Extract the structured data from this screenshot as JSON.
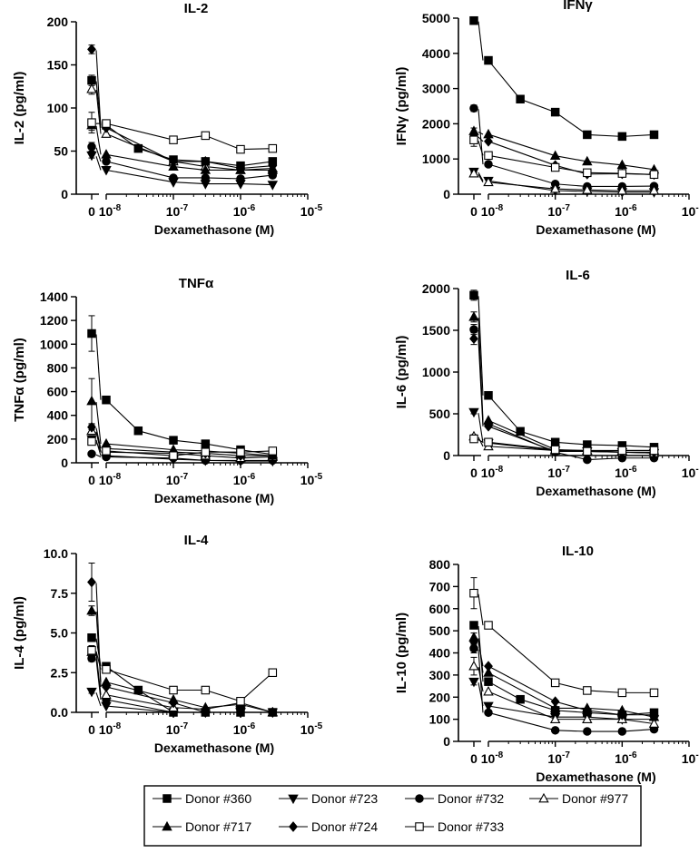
{
  "x_axis": {
    "label": "Dexamethasone (M)",
    "ticks": [
      {
        "base": "0",
        "exp": ""
      },
      {
        "base": "10",
        "exp": "-8"
      },
      {
        "base": "10",
        "exp": "-7"
      },
      {
        "base": "10",
        "exp": "-6"
      },
      {
        "base": "10",
        "exp": "-5"
      }
    ]
  },
  "legend": [
    {
      "name": "Donor #360",
      "marker": "square-filled"
    },
    {
      "name": "Donor #723",
      "marker": "triangle-down-filled"
    },
    {
      "name": "Donor #732",
      "marker": "circle-filled"
    },
    {
      "name": "Donor #977",
      "marker": "triangle-up-open"
    },
    {
      "name": "Donor #717",
      "marker": "triangle-up-filled"
    },
    {
      "name": "Donor #724",
      "marker": "diamond-filled"
    },
    {
      "name": "Donor #733",
      "marker": "square-open"
    }
  ],
  "chart_data": [
    {
      "type": "line",
      "title": "IL-2",
      "ylabel": "IL-2 (pg/ml)",
      "xlabel": "Dexamethasone (M)",
      "xscale": "log with separate zero point",
      "x_zero_label": "0",
      "x": [
        1e-08,
        3e-08,
        1e-07,
        3e-07,
        1e-06,
        3e-06
      ],
      "ylim": [
        0,
        200
      ],
      "yticks": [
        "0",
        "50",
        "100",
        "150",
        "200"
      ],
      "series": [
        {
          "name": "Donor #360",
          "zero": 132,
          "zero_err": 6,
          "values": [
            80,
            53,
            40,
            38,
            33,
            38
          ]
        },
        {
          "name": "Donor #723",
          "zero": 45,
          "zero_err": 3,
          "values": [
            28,
            null,
            14,
            12,
            12,
            11
          ]
        },
        {
          "name": "Donor #732",
          "zero": 55,
          "zero_err": 5,
          "values": [
            38,
            null,
            19,
            19,
            18,
            22
          ]
        },
        {
          "name": "Donor #977",
          "zero": 122,
          "zero_err": 6,
          "values": [
            70,
            null,
            38,
            32,
            28,
            30
          ]
        },
        {
          "name": "Donor #717",
          "zero": 80,
          "zero_err": 6,
          "values": [
            46,
            null,
            32,
            28,
            28,
            28
          ]
        },
        {
          "name": "Donor #724",
          "zero": 168,
          "zero_err": 5,
          "values": [
            77,
            null,
            38,
            38,
            30,
            33
          ]
        },
        {
          "name": "Donor #733",
          "zero": 83,
          "zero_err": 12,
          "values": [
            82,
            null,
            63,
            68,
            52,
            53
          ]
        }
      ]
    },
    {
      "type": "line",
      "title": "IFNγ",
      "ylabel": "IFNγ (pg/ml)",
      "xlabel": "Dexamethasone (M)",
      "xscale": "log with separate zero point",
      "x_zero_label": "0",
      "x": [
        1e-08,
        3e-08,
        1e-07,
        3e-07,
        1e-06,
        3e-06
      ],
      "ylim": [
        0,
        5000
      ],
      "yticks": [
        "0",
        "1000",
        "2000",
        "3000",
        "4000",
        "5000"
      ],
      "series": [
        {
          "name": "Donor #360",
          "zero": 4930,
          "zero_err": 40,
          "values": [
            3800,
            2700,
            2330,
            1690,
            1640,
            1690
          ]
        },
        {
          "name": "Donor #723",
          "zero": 640,
          "zero_err": 40,
          "values": [
            380,
            null,
            100,
            80,
            60,
            60
          ]
        },
        {
          "name": "Donor #732",
          "zero": 2440,
          "zero_err": 90,
          "values": [
            850,
            null,
            290,
            220,
            220,
            230
          ]
        },
        {
          "name": "Donor #977",
          "zero": 590,
          "zero_err": 40,
          "values": [
            340,
            null,
            150,
            120,
            100,
            100
          ]
        },
        {
          "name": "Donor #717",
          "zero": 1790,
          "zero_err": 90,
          "values": [
            1700,
            null,
            1090,
            930,
            830,
            700
          ]
        },
        {
          "name": "Donor #724",
          "zero": 1650,
          "zero_err": 90,
          "values": [
            1500,
            null,
            820,
            570,
            580,
            560
          ]
        },
        {
          "name": "Donor #733",
          "zero": 1540,
          "zero_err": 180,
          "values": [
            1100,
            null,
            760,
            610,
            590,
            560
          ]
        }
      ]
    },
    {
      "type": "line",
      "title": "TNFα",
      "ylabel": "TNFα (pg/ml)",
      "xlabel": "Dexamethasone (M)",
      "xscale": "log with separate zero point",
      "x_zero_label": "0",
      "x": [
        1e-08,
        3e-08,
        1e-07,
        3e-07,
        1e-06,
        3e-06
      ],
      "ylim": [
        0,
        1400
      ],
      "yticks": [
        "0",
        "200",
        "400",
        "600",
        "800",
        "1000",
        "1200",
        "1400"
      ],
      "series": [
        {
          "name": "Donor #360",
          "zero": 1090,
          "zero_err": 150,
          "values": [
            530,
            270,
            190,
            160,
            110,
            70
          ]
        },
        {
          "name": "Donor #723",
          "zero": 200,
          "zero_err": 15,
          "values": [
            60,
            null,
            30,
            20,
            15,
            15
          ]
        },
        {
          "name": "Donor #732",
          "zero": 75,
          "zero_err": 10,
          "values": [
            50,
            null,
            40,
            20,
            20,
            20
          ]
        },
        {
          "name": "Donor #977",
          "zero": 270,
          "zero_err": 30,
          "values": [
            90,
            null,
            80,
            60,
            40,
            50
          ]
        },
        {
          "name": "Donor #717",
          "zero": 520,
          "zero_err": 190,
          "values": [
            160,
            null,
            110,
            100,
            80,
            60
          ]
        },
        {
          "name": "Donor #724",
          "zero": 300,
          "zero_err": 20,
          "values": [
            120,
            null,
            90,
            80,
            60,
            60
          ]
        },
        {
          "name": "Donor #733",
          "zero": 180,
          "zero_err": 30,
          "values": [
            100,
            null,
            60,
            90,
            90,
            100
          ]
        }
      ]
    },
    {
      "type": "line",
      "title": "IL-6",
      "ylabel": "IL-6 (pg/ml)",
      "xlabel": "Dexamethasone (M)",
      "xscale": "log with separate zero point",
      "x_zero_label": "0",
      "x": [
        1e-08,
        3e-08,
        1e-07,
        3e-07,
        1e-06,
        3e-06
      ],
      "ylim": [
        0,
        2000
      ],
      "yticks": [
        "0",
        "500",
        "1000",
        "1500",
        "2000"
      ],
      "series": [
        {
          "name": "Donor #360",
          "zero": 1920,
          "zero_err": 60,
          "values": [
            720,
            290,
            160,
            130,
            120,
            100
          ]
        },
        {
          "name": "Donor #723",
          "zero": 520,
          "zero_err": 20,
          "values": [
            150,
            null,
            60,
            50,
            40,
            30
          ]
        },
        {
          "name": "Donor #732",
          "zero": 1510,
          "zero_err": 60,
          "values": [
            380,
            null,
            40,
            -50,
            -30,
            -30
          ]
        },
        {
          "name": "Donor #977",
          "zero": 230,
          "zero_err": 20,
          "values": [
            110,
            null,
            60,
            60,
            40,
            30
          ]
        },
        {
          "name": "Donor #717",
          "zero": 1660,
          "zero_err": 60,
          "values": [
            420,
            null,
            70,
            60,
            60,
            60
          ]
        },
        {
          "name": "Donor #724",
          "zero": 1400,
          "zero_err": 70,
          "values": [
            350,
            null,
            50,
            50,
            40,
            40
          ]
        },
        {
          "name": "Donor #733",
          "zero": 200,
          "zero_err": 20,
          "values": [
            160,
            null,
            70,
            50,
            60,
            60
          ]
        }
      ]
    },
    {
      "type": "line",
      "title": "IL-4",
      "ylabel": "IL-4 (pg/ml)",
      "xlabel": "Dexamethasone (M)",
      "xscale": "log with separate zero point",
      "x_zero_label": "0",
      "x": [
        1e-08,
        3e-08,
        1e-07,
        3e-07,
        1e-06,
        3e-06
      ],
      "ylim": [
        0,
        10
      ],
      "yticks": [
        "0.0",
        "2.5",
        "5.0",
        "7.5",
        "10.0"
      ],
      "series": [
        {
          "name": "Donor #360",
          "zero": 4.7,
          "zero_err": 0.2,
          "values": [
            2.9,
            1.4,
            0,
            0,
            0,
            0
          ]
        },
        {
          "name": "Donor #723",
          "zero": 1.3,
          "zero_err": 0.1,
          "values": [
            0.4,
            null,
            0,
            0,
            0,
            0
          ]
        },
        {
          "name": "Donor #732",
          "zero": 3.4,
          "zero_err": 0.2,
          "values": [
            0.8,
            null,
            0,
            0,
            0,
            0
          ]
        },
        {
          "name": "Donor #977",
          "zero": 3.8,
          "zero_err": 0.2,
          "values": [
            1.1,
            null,
            0.3,
            0.2,
            0.6,
            0
          ]
        },
        {
          "name": "Donor #717",
          "zero": 6.4,
          "zero_err": 0.3,
          "values": [
            1.9,
            null,
            0.8,
            0.3,
            0.5,
            0
          ]
        },
        {
          "name": "Donor #724",
          "zero": 8.2,
          "zero_err": 1.2,
          "values": [
            1.6,
            null,
            0.6,
            0,
            0,
            0
          ]
        },
        {
          "name": "Donor #733",
          "zero": 3.9,
          "zero_err": 0.3,
          "values": [
            2.7,
            null,
            1.4,
            1.4,
            0.7,
            2.5
          ]
        }
      ]
    },
    {
      "type": "line",
      "title": "IL-10",
      "ylabel": "IL-10 (pg/ml)",
      "xlabel": "Dexamethasone (M)",
      "xscale": "log with separate zero point",
      "x_zero_label": "0",
      "x": [
        1e-08,
        3e-08,
        1e-07,
        3e-07,
        1e-06,
        3e-06
      ],
      "ylim": [
        0,
        800
      ],
      "yticks": [
        "0",
        "100",
        "200",
        "300",
        "400",
        "500",
        "600",
        "700",
        "800"
      ],
      "series": [
        {
          "name": "Donor #360",
          "zero": 525,
          "zero_err": 15,
          "values": [
            270,
            190,
            140,
            130,
            120,
            130
          ]
        },
        {
          "name": "Donor #723",
          "zero": 270,
          "zero_err": 15,
          "values": [
            160,
            null,
            110,
            110,
            100,
            100
          ]
        },
        {
          "name": "Donor #732",
          "zero": 420,
          "zero_err": 20,
          "values": [
            130,
            null,
            50,
            45,
            45,
            55
          ]
        },
        {
          "name": "Donor #977",
          "zero": 340,
          "zero_err": 40,
          "values": [
            225,
            null,
            100,
            100,
            100,
            80
          ]
        },
        {
          "name": "Donor #717",
          "zero": 470,
          "zero_err": 20,
          "values": [
            310,
            null,
            150,
            150,
            140,
            110
          ]
        },
        {
          "name": "Donor #724",
          "zero": 450,
          "zero_err": 15,
          "values": [
            340,
            null,
            180,
            140,
            120,
            120
          ]
        },
        {
          "name": "Donor #733",
          "zero": 670,
          "zero_err": 70,
          "values": [
            525,
            null,
            265,
            230,
            220,
            220
          ]
        }
      ]
    }
  ]
}
